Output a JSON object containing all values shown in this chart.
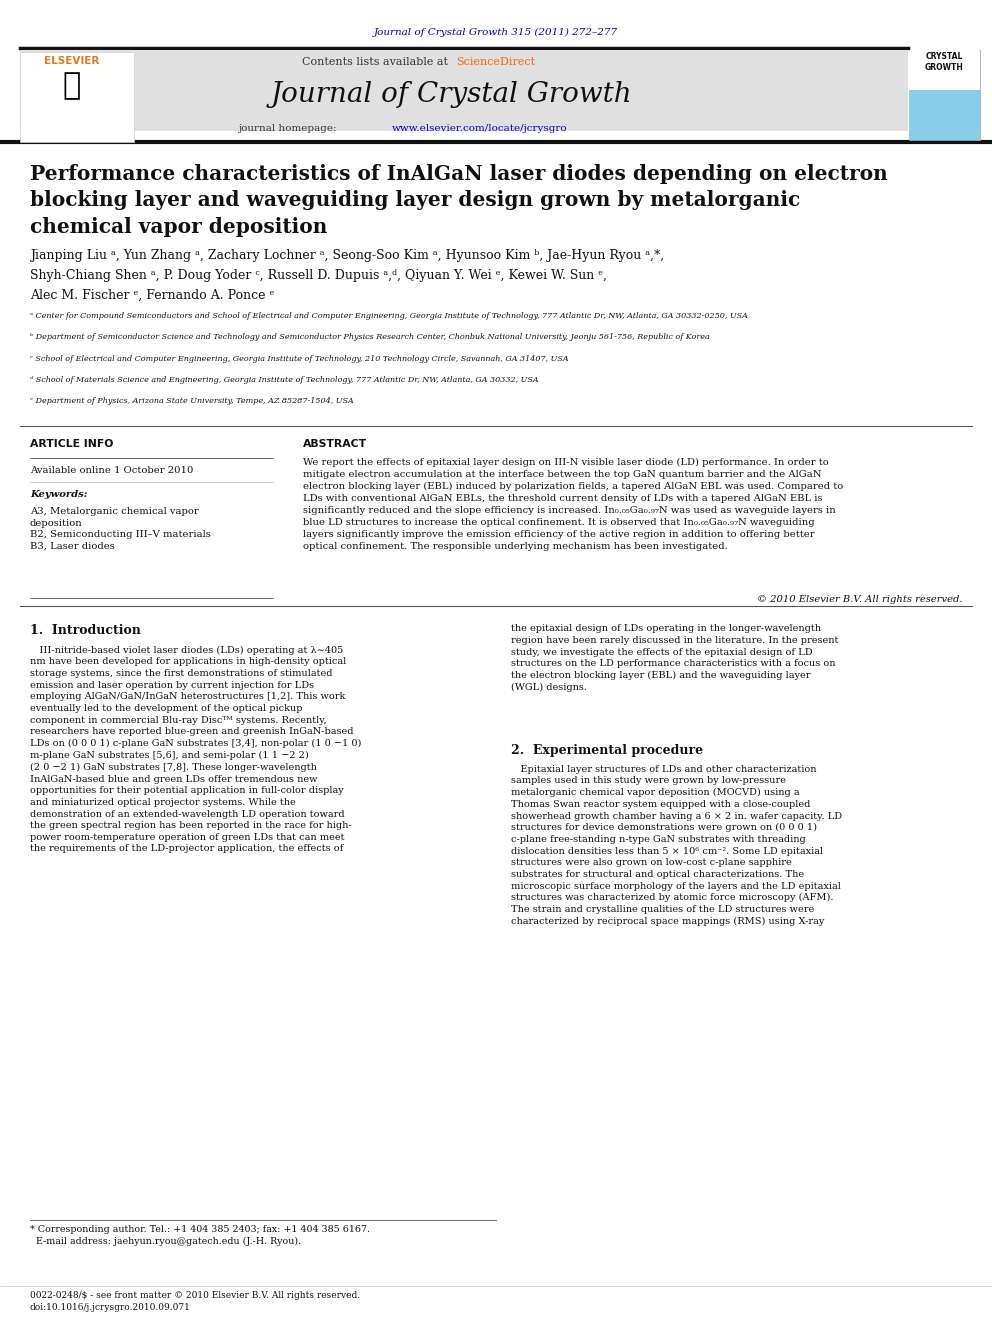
{
  "fig_width": 9.92,
  "fig_height": 13.23,
  "bg_color": "#ffffff",
  "header_journal_link": "Journal of Crystal Growth 315 (2011) 272–277",
  "header_link_color": "#0000cc",
  "journal_header_bg": "#d9d9d9",
  "contents_text": "Contents lists available at ",
  "sciencedirect_text": "ScienceDirect",
  "sciencedirect_color": "#ff6600",
  "journal_name": "Journal of Crystal Growth",
  "journal_homepage_text": "journal homepage: ",
  "journal_url": "www.elsevier.com/locate/jcrysgro",
  "journal_url_color": "#0000cc",
  "elsevier_color": "#ff6600",
  "title": "Performance characteristics of InAlGaN laser diodes depending on electron\nblocking layer and waveguiding layer design grown by metalorganic\nchemical vapor deposition",
  "authors_line1": "Jianping Liu ᵃ, Yun Zhang ᵃ, Zachary Lochner ᵃ, Seong-Soo Kim ᵃ, Hyunsoo Kim ᵇ, Jae-Hyun Ryou ᵃ,*,",
  "authors_line2": "Shyh-Chiang Shen ᵃ, P. Doug Yoder ᶜ, Russell D. Dupuis ᵃ,ᵈ, Qiyuan Y. Wei ᵉ, Kewei W. Sun ᵉ,",
  "authors_line3": "Alec M. Fischer ᵉ, Fernando A. Ponce ᵉ",
  "affil_a": "ᵃ Center for Compound Semiconductors and School of Electrical and Computer Engineering, Georgia Institute of Technology, 777 Atlantic Dr, NW, Atlanta, GA 30332-0250, USA",
  "affil_b": "ᵇ Department of Semiconductor Science and Technology and Semiconductor Physics Research Center, Chonbuk National University, Jeonju 561-756, Republic of Korea",
  "affil_c": "ᶜ School of Electrical and Computer Engineering, Georgia Institute of Technology, 210 Technology Circle, Savannah, GA 31407, USA",
  "affil_d": "ᵈ School of Materials Science and Engineering, Georgia Institute of Technology, 777 Atlantic Dr, NW, Atlanta, GA 30332, USA",
  "affil_e": "ᵉ Department of Physics, Arizona State University, Tempe, AZ 85287-1504, USA",
  "article_info_title": "ARTICLE INFO",
  "available_online": "Available online 1 October 2010",
  "keywords_title": "Keywords:",
  "keywords": "A3, Metalorganic chemical vapor\ndeposition\nB2, Semiconducting III–V materials\nB3, Laser diodes",
  "abstract_title": "ABSTRACT",
  "abstract_text": "We report the effects of epitaxial layer design on III-N visible laser diode (LD) performance. In order to\nmitigate electron accumulation at the interface between the top GaN quantum barrier and the AlGaN\nelectron blocking layer (EBL) induced by polarization fields, a tapered AlGaN EBL was used. Compared to\nLDs with conventional AlGaN EBLs, the threshold current density of LDs with a tapered AlGaN EBL is\nsignificantly reduced and the slope efficiency is increased. In₀.₀₅Ga₀.₉₇N was used as waveguide layers in\nblue LD structures to increase the optical confinement. It is observed that In₀.₀₅Ga₀.₉₇N waveguiding\nlayers significantly improve the emission efficiency of the active region in addition to offering better\noptical confinement. The responsible underlying mechanism has been investigated.",
  "copyright": "© 2010 Elsevier B.V. All rights reserved.",
  "intro_title": "1.  Introduction",
  "intro_text": "   III-nitride-based violet laser diodes (LDs) operating at λ∼405\nnm have been developed for applications in high-density optical\nstorage systems, since the first demonstrations of stimulated\nemission and laser operation by current injection for LDs\nemploying AlGaN/GaN/InGaN heterostructures [1,2]. This work\neventually led to the development of the optical pickup\ncomponent in commercial Blu-ray Discᵀᴹ systems. Recently,\nresearchers have reported blue-green and greenish InGaN-based\nLDs on (0 0 0 1) c-plane GaN substrates [3,4], non-polar (1 0 −1 0)\nm-plane GaN substrates [5,6], and semi-polar (1 1 −2 2)\n(2 0 −2 1) GaN substrates [7,8]. These longer-wavelength\nInAlGaN-based blue and green LDs offer tremendous new\nopportunities for their potential application in full-color display\nand miniaturized optical projector systems. While the\ndemonstration of an extended-wavelength LD operation toward\nthe green spectral region has been reported in the race for high-\npower room-temperature operation of green LDs that can meet\nthe requirements of the LD-projector application, the effects of",
  "intro_right_text": "the epitaxial design of LDs operating in the longer-wavelength\nregion have been rarely discussed in the literature. In the present\nstudy, we investigate the effects of the epitaxial design of LD\nstructures on the LD performance characteristics with a focus on\nthe electron blocking layer (EBL) and the waveguiding layer\n(WGL) designs.",
  "exp_title": "2.  Experimental procedure",
  "exp_text": "   Epitaxial layer structures of LDs and other characterization\nsamples used in this study were grown by low-pressure\nmetalorganic chemical vapor deposition (MOCVD) using a\nThomas Swan reactor system equipped with a close-coupled\nshowerhead growth chamber having a 6 × 2 in. wafer capacity. LD\nstructures for device demonstrations were grown on (0 0 0 1)\nc-plane free-standing n-type GaN substrates with threading\ndislocation densities less than 5 × 10⁶ cm⁻². Some LD epitaxial\nstructures were also grown on low-cost c-plane sapphire\nsubstrates for structural and optical characterizations. The\nmicroscopic surface morphology of the layers and the LD epitaxial\nstructures was characterized by atomic force microscopy (AFM).\nThe strain and crystalline qualities of the LD structures were\ncharacterized by reciprocal space mappings (RMS) using X-ray",
  "footnote_text": "* Corresponding author. Tel.: +1 404 385 2403; fax: +1 404 385 6167.\n  E-mail address: jaehyun.ryou@gatech.edu (J.-H. Ryou).",
  "footer_text": "0022-0248/$ - see front matter © 2010 Elsevier B.V. All rights reserved.\ndoi:10.1016/j.jcrysgro.2010.09.071"
}
